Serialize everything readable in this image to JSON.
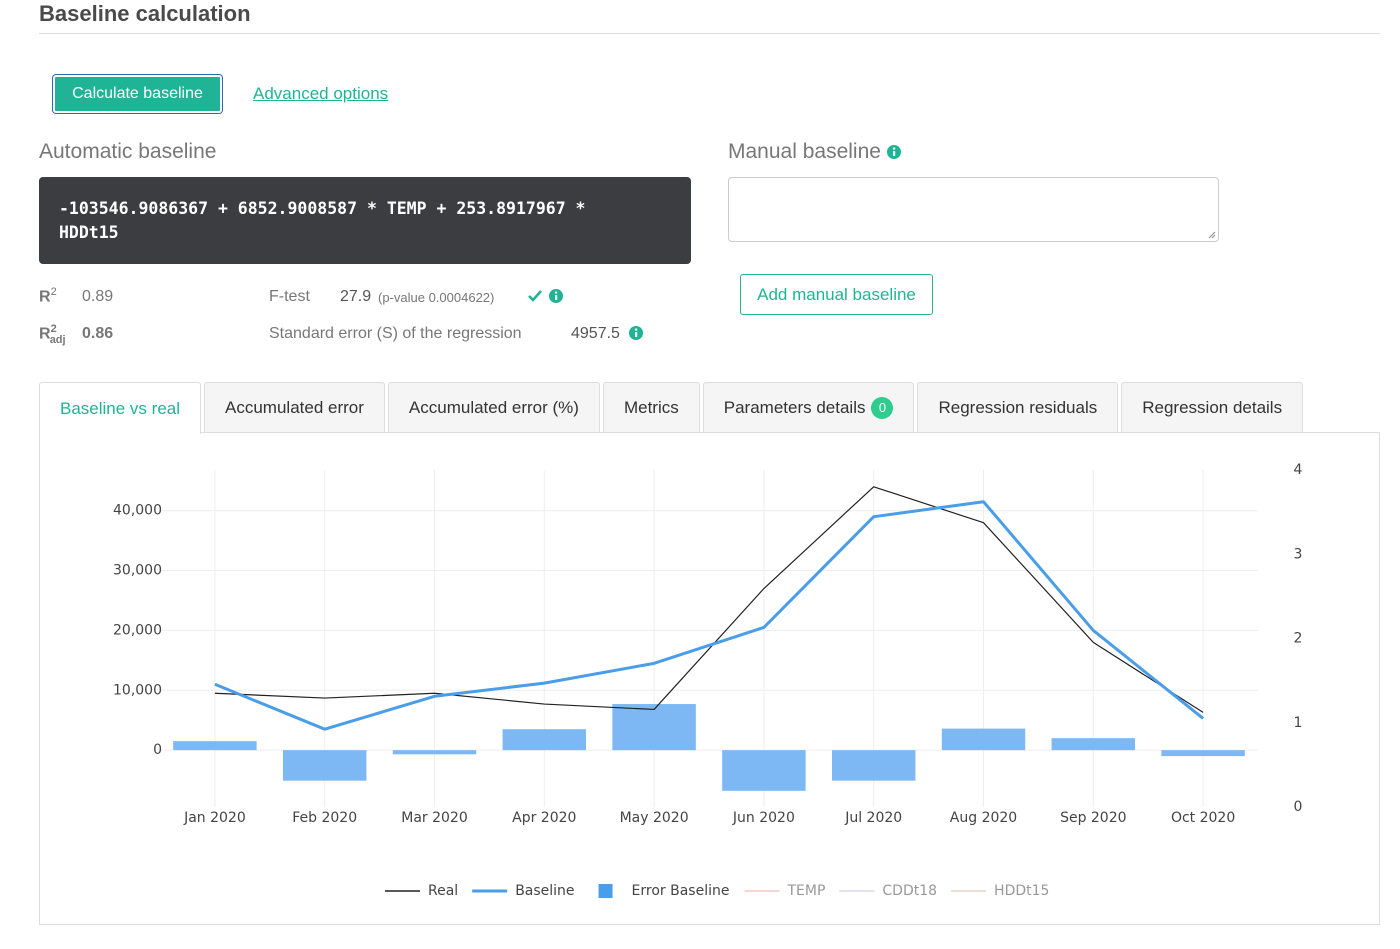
{
  "header": {
    "title": "Baseline calculation"
  },
  "actions": {
    "calculate": "Calculate baseline",
    "advanced": "Advanced options"
  },
  "automatic": {
    "title": "Automatic baseline",
    "formula": "-103546.9086367 + 6852.9008587 * TEMP + 253.8917967 * HDDt15"
  },
  "stats": {
    "r2": {
      "label": "R",
      "sup": "2",
      "value": 0.89
    },
    "r2_adj": {
      "label": "R",
      "sup": "2",
      "sub": "adj",
      "value": 0.86
    },
    "f_test": {
      "label": "F-test",
      "value": 27.9,
      "note": "(p-value 0.0004622)"
    },
    "std_error": {
      "label": "Standard error (S) of the regression",
      "value": 4957.5
    }
  },
  "manual": {
    "title": "Manual baseline",
    "button": "Add manual baseline"
  },
  "tabs": [
    {
      "label": "Baseline vs real"
    },
    {
      "label": "Accumulated error"
    },
    {
      "label": "Accumulated error (%)"
    },
    {
      "label": "Metrics"
    },
    {
      "label": "Parameters details",
      "badge": 0
    },
    {
      "label": "Regression residuals"
    },
    {
      "label": "Regression details"
    }
  ],
  "chart_data": {
    "type": "combo",
    "categories": [
      "Jan 2020",
      "Feb 2020",
      "Mar 2020",
      "Apr 2020",
      "May 2020",
      "Jun 2020",
      "Jul 2020",
      "Aug 2020",
      "Sep 2020",
      "Oct 2020"
    ],
    "series": [
      {
        "name": "Real",
        "type": "line",
        "color": "#222222",
        "values": [
          9500,
          8700,
          9500,
          7700,
          6800,
          27000,
          44000,
          38000,
          18000,
          6300
        ]
      },
      {
        "name": "Baseline",
        "type": "line",
        "color": "#4a9de8",
        "values": [
          11000,
          3500,
          9000,
          11200,
          14500,
          20500,
          39000,
          41500,
          20000,
          5300
        ]
      },
      {
        "name": "Error Baseline",
        "type": "bar",
        "color": "#7eb8f4",
        "values": [
          1500,
          -5100,
          -700,
          3500,
          7700,
          -6800,
          -5100,
          3600,
          2000,
          -1000
        ]
      },
      {
        "name": "TEMP",
        "type": "line",
        "color": "#f09a9a",
        "axis": "y2",
        "visible": false
      },
      {
        "name": "CDDt18",
        "type": "line",
        "color": "#c4b6e2",
        "axis": "y2",
        "visible": false
      },
      {
        "name": "HDDt15",
        "type": "line",
        "color": "#d6aaa2",
        "axis": "y2",
        "visible": false
      }
    ],
    "ylim": [
      -9500,
      46800
    ],
    "yticks": [
      0,
      {
        "value": 10000,
        "label": "10,000"
      },
      {
        "value": 20000,
        "label": "20,000"
      },
      {
        "value": 30000,
        "label": "30,000"
      },
      {
        "value": 40000,
        "label": "40,000"
      }
    ],
    "y2lim": [
      0,
      4
    ],
    "y2ticks": [
      0,
      1,
      2,
      3,
      4
    ],
    "grid": true,
    "legend": "bottom"
  }
}
